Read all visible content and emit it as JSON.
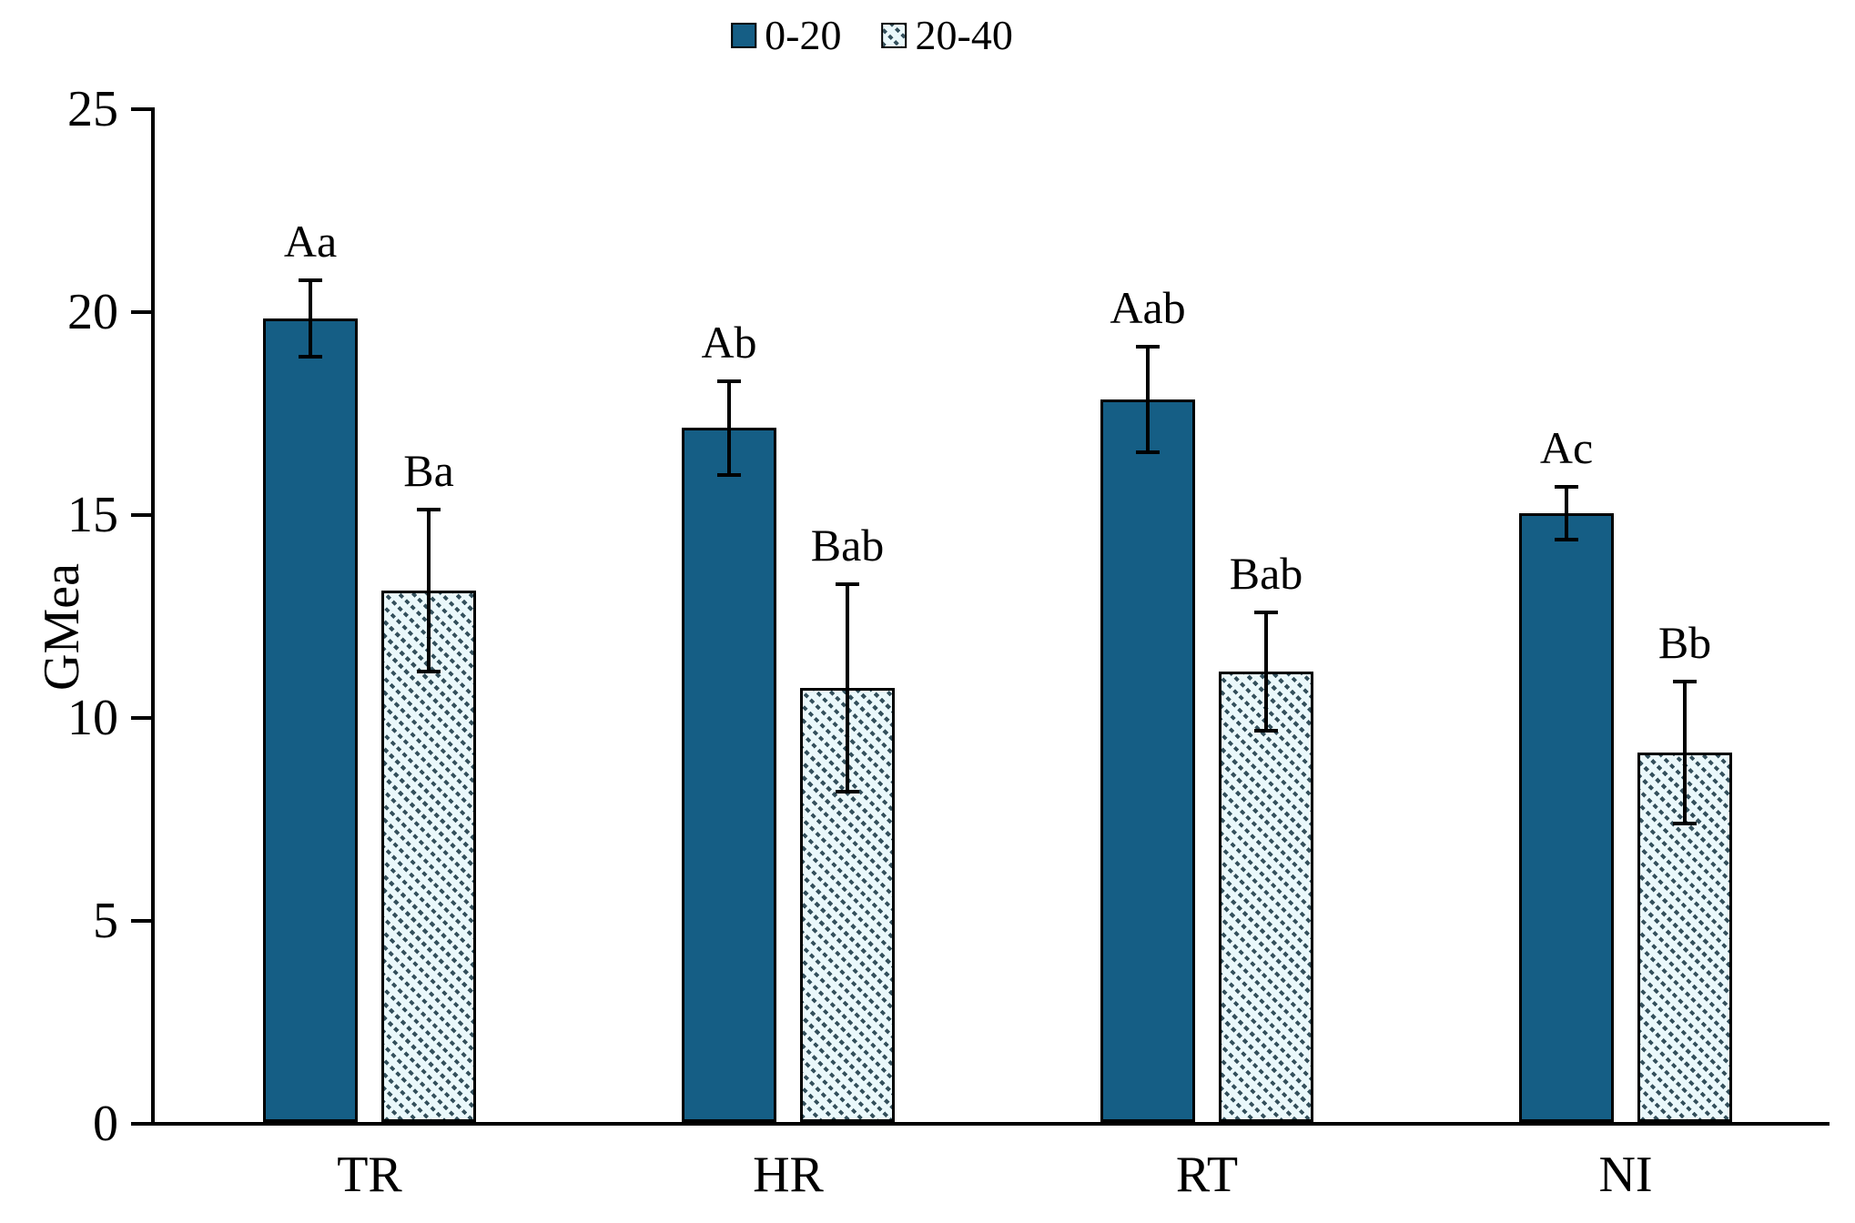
{
  "colors": {
    "solid_fill": "#155E85",
    "hatch_background": "#EAF8FB",
    "hatch_foreground": "#34505C",
    "axis": "#000000"
  },
  "legend": {
    "items": [
      {
        "label": "0-20",
        "swatch": "solid-square-icon"
      },
      {
        "label": "20-40",
        "swatch": "hatched-square-icon"
      }
    ]
  },
  "chart_data": {
    "type": "bar",
    "title": "",
    "xlabel": "",
    "ylabel": "GMea",
    "ylim": [
      0,
      25
    ],
    "yticks": [
      0,
      5,
      10,
      15,
      20,
      25
    ],
    "grid": false,
    "legend_position": "top-center",
    "categories": [
      "TR",
      "HR",
      "RT",
      "NI"
    ],
    "series": [
      {
        "name": "0-20",
        "style": "solid",
        "values": [
          19.8,
          17.1,
          17.8,
          15.0
        ],
        "errors": [
          0.95,
          1.15,
          1.3,
          0.65
        ],
        "labels": [
          "Aa",
          "Ab",
          "Aab",
          "Ac"
        ]
      },
      {
        "name": "20-40",
        "style": "hatch",
        "values": [
          13.1,
          10.7,
          11.1,
          9.1
        ],
        "errors": [
          2.0,
          2.55,
          1.45,
          1.75
        ],
        "labels": [
          "Ba",
          "Bab",
          "Bab",
          "Bb"
        ]
      }
    ]
  }
}
